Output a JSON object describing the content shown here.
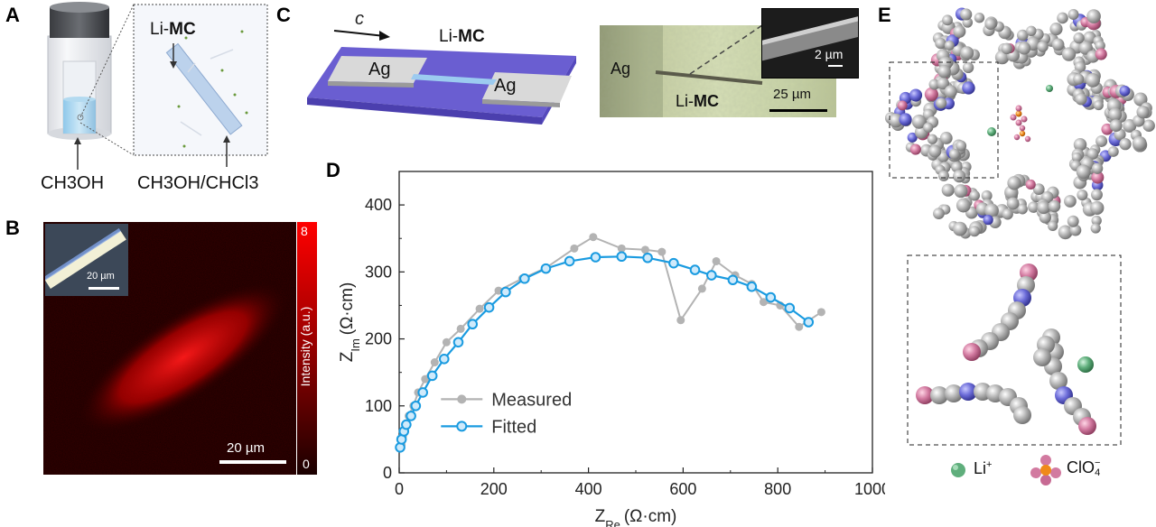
{
  "panels": {
    "a": {
      "letter": "A",
      "zoom_label_prefix": "Li-",
      "zoom_label_bold": "MC",
      "solvent_left": "CH3OH",
      "solvent_right": "CH3OH/CHCl3"
    },
    "b": {
      "letter": "B",
      "inset_scale": "20 µm",
      "main_scale": "20 µm",
      "colorbar_max": "8",
      "colorbar_min": "0",
      "colorbar_label": "Intensity (a.u.)"
    },
    "c": {
      "letter": "C",
      "axis_label": "c",
      "device_label_prefix": "Li-",
      "device_label_bold": "MC",
      "electrode_left": "Ag",
      "electrode_right": "Ag",
      "micro_ag_label": "Ag",
      "micro_label_prefix": "Li-",
      "micro_label_bold": "MC",
      "micro_scale": "25 µm",
      "sem_scale": "2 µm"
    },
    "d": {
      "letter": "D"
    },
    "e": {
      "letter": "E",
      "legend_li": "Li",
      "legend_li_sup": "+",
      "legend_clo4": "ClO",
      "legend_clo4_sub": "4",
      "legend_clo4_sup": "−"
    }
  },
  "chart_data": {
    "type": "scatter",
    "title": "",
    "xlabel": "Z_Re (Ω·cm)",
    "ylabel": "Z_Im (Ω·cm)",
    "xlim": [
      0,
      1000
    ],
    "ylim": [
      0,
      450
    ],
    "xticks": [
      0,
      200,
      400,
      600,
      800,
      1000
    ],
    "yticks": [
      0,
      100,
      200,
      300,
      400
    ],
    "legend_position": "bottom-center",
    "series": [
      {
        "name": "Measured",
        "color": "#b3b3b3",
        "x": [
          5,
          8,
          12,
          20,
          30,
          40,
          55,
          75,
          100,
          130,
          170,
          210,
          260,
          310,
          370,
          410,
          470,
          520,
          555,
          595,
          640,
          670,
          710,
          745,
          770,
          805,
          845,
          892
        ],
        "y": [
          42,
          55,
          65,
          85,
          100,
          120,
          140,
          165,
          195,
          215,
          245,
          272,
          290,
          306,
          335,
          352,
          335,
          333,
          330,
          228,
          275,
          316,
          295,
          282,
          255,
          250,
          218,
          240
        ]
      },
      {
        "name": "Fitted",
        "color": "#1a9be0",
        "x": [
          2,
          5,
          10,
          15,
          25,
          35,
          50,
          70,
          95,
          125,
          155,
          190,
          225,
          265,
          310,
          360,
          415,
          470,
          525,
          580,
          625,
          660,
          705,
          745,
          785,
          825,
          865
        ],
        "y": [
          38,
          50,
          62,
          72,
          85,
          100,
          120,
          145,
          170,
          195,
          222,
          247,
          270,
          290,
          305,
          316,
          322,
          323,
          321,
          313,
          303,
          295,
          288,
          278,
          262,
          246,
          225
        ]
      }
    ]
  }
}
